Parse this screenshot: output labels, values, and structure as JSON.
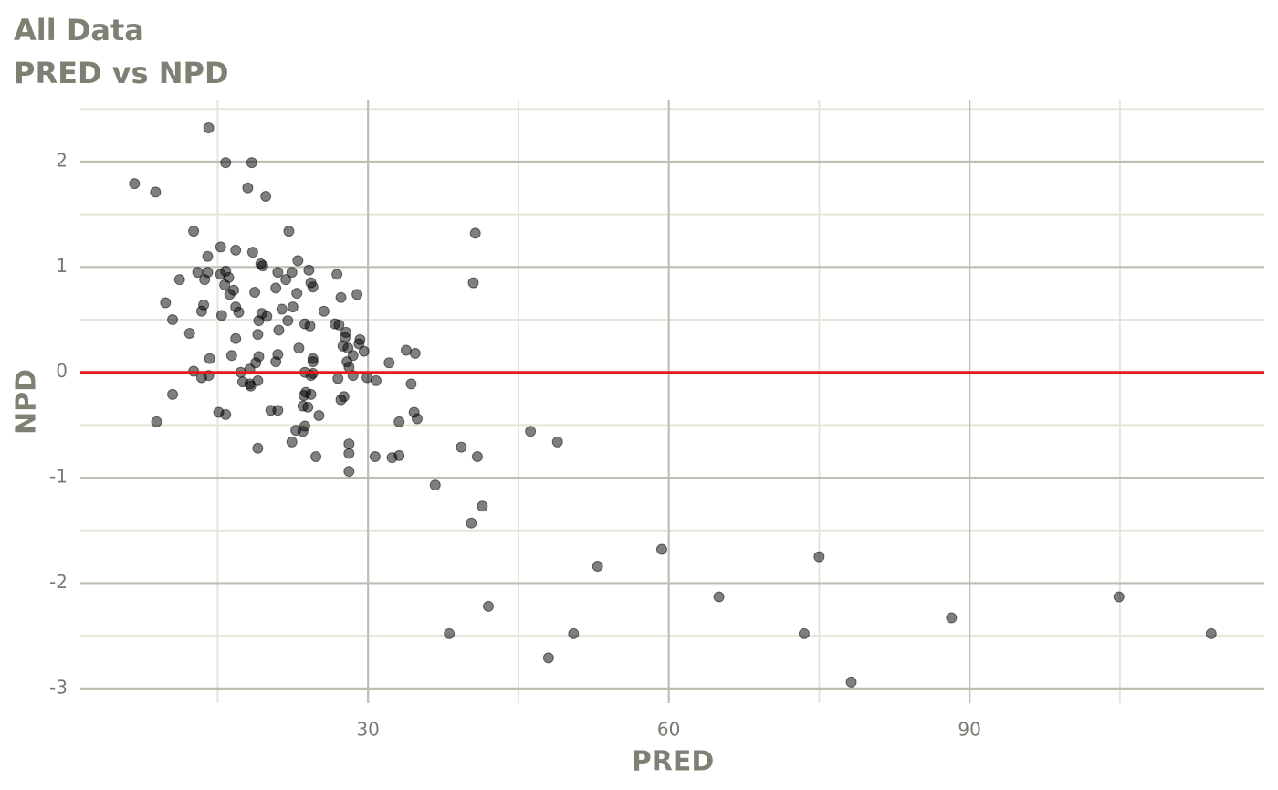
{
  "chart_data": {
    "type": "scatter",
    "title": "All Data",
    "subtitle": "PRED vs NPD",
    "x_label": "PRED",
    "y_label": "NPD",
    "xlim": [
      1.3,
      119.4
    ],
    "ylim": [
      -3.14,
      2.58
    ],
    "xticks": [
      30,
      60,
      90
    ],
    "yticks": [
      -3,
      -2,
      -1,
      0,
      1,
      2
    ],
    "grid": true,
    "color": "#000000",
    "opacity": 0.5,
    "hline": 0,
    "hline_color": "#e31a1c",
    "x": [
      6.7,
      8.8,
      14.1,
      15.8,
      18.4,
      18.0,
      19.8,
      22.1,
      12.6,
      40.7,
      40.5,
      15.3,
      16.8,
      18.5,
      14.0,
      23.0,
      19.3,
      19.5,
      11.2,
      13.0,
      14.0,
      15.3,
      15.8,
      16.1,
      13.7,
      21.0,
      22.4,
      24.1,
      26.9,
      21.8,
      24.3,
      24.5,
      15.7,
      16.6,
      18.7,
      20.8,
      16.2,
      22.9,
      27.3,
      28.9,
      9.8,
      13.6,
      16.8,
      13.4,
      17.1,
      19.4,
      19.9,
      15.4,
      21.4,
      22.5,
      25.6,
      10.5,
      19.1,
      22.0,
      23.7,
      24.2,
      26.7,
      27.1,
      12.2,
      19.0,
      21.1,
      27.8,
      27.7,
      29.2,
      16.8,
      29.1,
      27.5,
      28.0,
      23.1,
      29.6,
      33.8,
      34.7,
      16.4,
      19.1,
      21.0,
      28.5,
      14.2,
      24.5,
      24.5,
      27.9,
      18.8,
      20.8,
      32.1,
      28.1,
      18.2,
      17.3,
      12.6,
      23.7,
      28.5,
      24.5,
      24.3,
      14.1,
      13.4,
      27.0,
      29.9,
      30.8,
      19.0,
      17.5,
      18.2,
      18.3,
      34.3,
      10.5,
      23.8,
      23.6,
      24.3,
      27.6,
      27.3,
      23.5,
      24.0,
      21.0,
      20.3,
      15.1,
      15.8,
      34.6,
      34.9,
      25.1,
      33.1,
      8.9,
      23.7,
      22.8,
      23.5,
      46.2,
      48.9,
      22.4,
      28.1,
      19.0,
      39.3,
      24.8,
      28.1,
      30.7,
      32.4,
      33.1,
      40.9,
      28.1,
      36.7,
      41.4,
      40.3,
      59.3,
      75.0,
      52.9,
      65.0,
      104.9,
      42.0,
      88.2,
      38.1,
      50.5,
      73.5,
      114.1,
      48.0,
      78.2
    ],
    "values": [
      1.79,
      1.71,
      2.32,
      1.99,
      1.99,
      1.75,
      1.67,
      1.34,
      1.34,
      1.32,
      0.85,
      1.19,
      1.16,
      1.14,
      1.1,
      1.06,
      1.03,
      1.01,
      0.88,
      0.95,
      0.95,
      0.93,
      0.96,
      0.9,
      0.88,
      0.95,
      0.95,
      0.97,
      0.93,
      0.88,
      0.85,
      0.81,
      0.83,
      0.78,
      0.76,
      0.8,
      0.74,
      0.75,
      0.71,
      0.74,
      0.66,
      0.64,
      0.62,
      0.58,
      0.57,
      0.56,
      0.53,
      0.54,
      0.6,
      0.62,
      0.58,
      0.5,
      0.49,
      0.49,
      0.46,
      0.44,
      0.46,
      0.45,
      0.37,
      0.36,
      0.4,
      0.38,
      0.33,
      0.31,
      0.32,
      0.27,
      0.25,
      0.23,
      0.23,
      0.2,
      0.21,
      0.18,
      0.16,
      0.15,
      0.17,
      0.16,
      0.13,
      0.13,
      0.1,
      0.1,
      0.09,
      0.1,
      0.09,
      0.05,
      0.03,
      0.0,
      0.01,
      0.0,
      -0.03,
      -0.01,
      -0.03,
      -0.03,
      -0.05,
      -0.06,
      -0.05,
      -0.08,
      -0.08,
      -0.09,
      -0.11,
      -0.13,
      -0.11,
      -0.21,
      -0.19,
      -0.22,
      -0.21,
      -0.23,
      -0.26,
      -0.32,
      -0.33,
      -0.36,
      -0.36,
      -0.38,
      -0.4,
      -0.38,
      -0.44,
      -0.41,
      -0.47,
      -0.47,
      -0.51,
      -0.55,
      -0.56,
      -0.56,
      -0.66,
      -0.66,
      -0.68,
      -0.72,
      -0.71,
      -0.8,
      -0.77,
      -0.8,
      -0.81,
      -0.79,
      -0.8,
      -0.94,
      -1.07,
      -1.27,
      -1.43,
      -1.68,
      -1.75,
      -1.84,
      -2.13,
      -2.13,
      -2.22,
      -2.33,
      -2.48,
      -2.48,
      -2.48,
      -2.48,
      -2.71,
      -2.94
    ]
  }
}
